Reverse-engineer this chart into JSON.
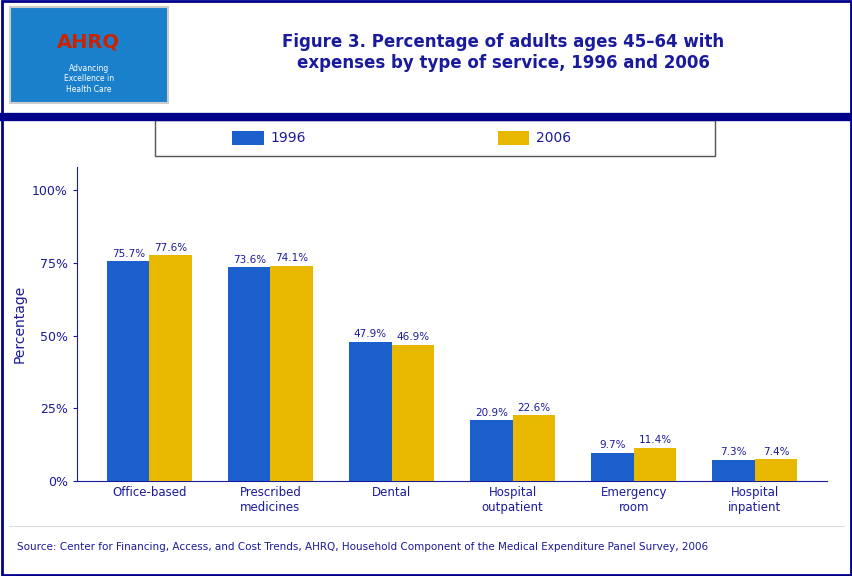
{
  "title": "Figure 3. Percentage of adults ages 45–64 with\nexpenses by type of service, 1996 and 2006",
  "title_color": "#1a1a9c",
  "title_fontsize": 12,
  "ylabel": "Percentage",
  "ylabel_color": "#1a1a9c",
  "ylabel_fontsize": 10,
  "categories": [
    "Office-based",
    "Prescribed\nmedicines",
    "Dental",
    "Hospital\noutpatient",
    "Emergency\nroom",
    "Hospital\ninpatient"
  ],
  "values_1996": [
    75.7,
    73.6,
    47.9,
    20.9,
    9.7,
    7.3
  ],
  "values_2006": [
    77.6,
    74.1,
    46.9,
    22.6,
    11.4,
    7.4
  ],
  "labels_1996": [
    "75.7%",
    "73.6%",
    "47.9%",
    "20.9%",
    "9.7%",
    "7.3%"
  ],
  "labels_2006": [
    "77.6%",
    "74.1%",
    "46.9%",
    "22.6%",
    "11.4%",
    "7.4%"
  ],
  "color_1996": "#1a5fcc",
  "color_2006": "#e8b800",
  "legend_labels": [
    "1996",
    "2006"
  ],
  "yticks": [
    0,
    25,
    50,
    75,
    100
  ],
  "ytick_labels": [
    "0%",
    "25%",
    "50%",
    "75%",
    "100%"
  ],
  "bar_width": 0.35,
  "background_color": "#ffffff",
  "header_line_color": "#00008B",
  "source_text": "Source: Center for Financing, Access, and Cost Trends, AHRQ, Household Component of the Medical Expenditure Panel Survey, 2006",
  "source_fontsize": 7.5,
  "source_color": "#1a1a9c",
  "annotation_fontsize": 7.5,
  "annotation_color": "#1a1a9c",
  "tick_color": "#1a1a9c",
  "axis_color": "#1a1a9c",
  "category_fontsize": 8.5,
  "category_color": "#1a1a9c",
  "outer_border_color": "#00008B",
  "header_bg_color": "#0000aa",
  "logo_bg_color": "#1a80cc"
}
